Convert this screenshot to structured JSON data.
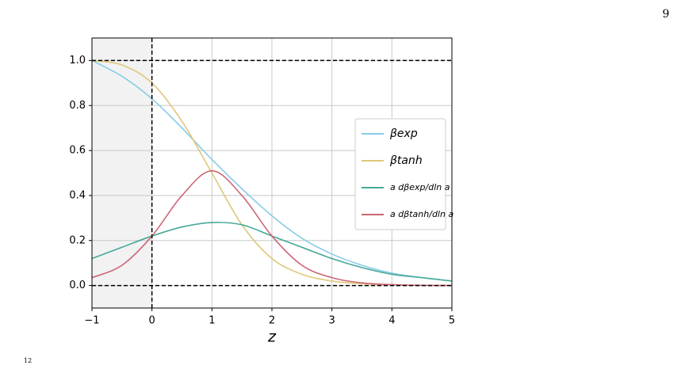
{
  "page_number": "9",
  "footnote_mark": "12",
  "chart_data": {
    "type": "line",
    "x_label": "z",
    "x": [
      -1,
      -0.5,
      0,
      0.5,
      1,
      1.5,
      2,
      2.5,
      3,
      3.5,
      4,
      4.5,
      5
    ],
    "series": [
      {
        "name": "βexp",
        "color": "#88cce8",
        "values": [
          1.0,
          0.93,
          0.83,
          0.7,
          0.56,
          0.43,
          0.31,
          0.21,
          0.14,
          0.09,
          0.055,
          0.035,
          0.02
        ]
      },
      {
        "name": "βtanh",
        "color": "#dfc77a",
        "values": [
          1.0,
          0.98,
          0.9,
          0.73,
          0.5,
          0.27,
          0.12,
          0.05,
          0.02,
          0.008,
          0.003,
          0.001,
          0.0
        ]
      },
      {
        "name": "a dβexp/dln a",
        "color": "#45a898",
        "values": [
          0.12,
          0.17,
          0.22,
          0.26,
          0.28,
          0.27,
          0.22,
          0.17,
          0.12,
          0.08,
          0.05,
          0.035,
          0.02
        ]
      },
      {
        "name": "a dβtanh/dln a",
        "color": "#cc6677",
        "values": [
          0.035,
          0.09,
          0.22,
          0.4,
          0.51,
          0.4,
          0.22,
          0.09,
          0.035,
          0.012,
          0.004,
          0.001,
          0.0
        ]
      }
    ],
    "xlim": [
      -1,
      5
    ],
    "ylim": [
      -0.1,
      1.1
    ],
    "xticks": [
      {
        "value": -1,
        "label": "−1"
      },
      0,
      1,
      2,
      3,
      4,
      5
    ],
    "yticks": [
      {
        "value": 0,
        "label": "0.0"
      },
      0.2,
      0.4,
      0.6,
      0.8,
      {
        "value": 1,
        "label": "1.0"
      }
    ],
    "grid": true,
    "shaded_xrange": [
      -1,
      0
    ],
    "hlines": [
      0,
      1
    ],
    "vlines": [
      0
    ],
    "legend": "center right"
  }
}
